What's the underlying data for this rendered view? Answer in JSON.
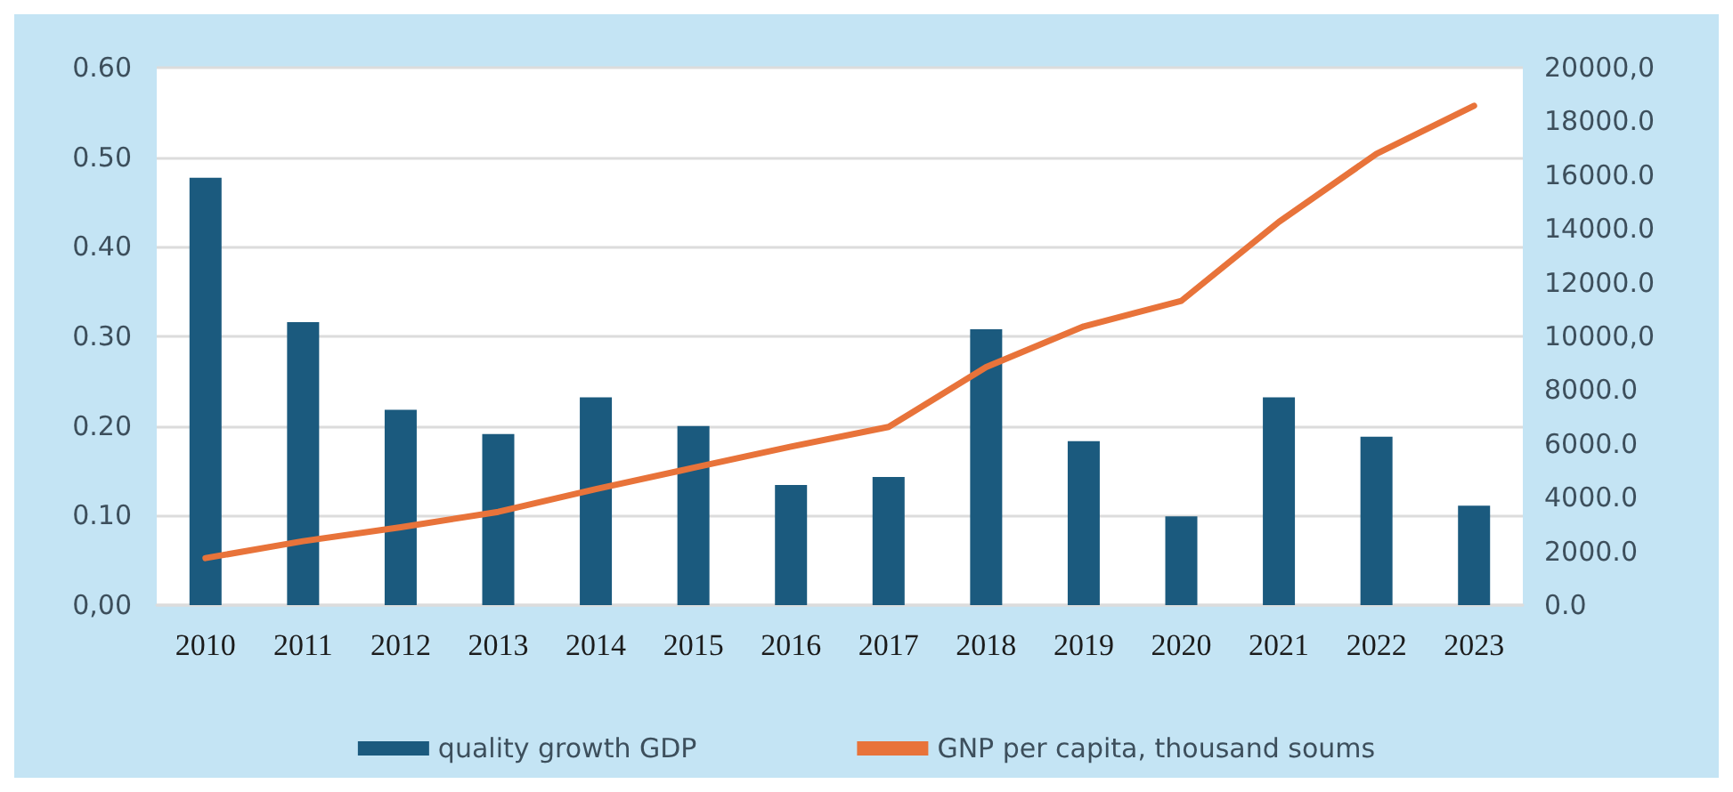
{
  "chart_data": {
    "type": "bar",
    "categories": [
      "2010",
      "2011",
      "2012",
      "2013",
      "2014",
      "2015",
      "2016",
      "2017",
      "2018",
      "2019",
      "2020",
      "2021",
      "2022",
      "2023"
    ],
    "series": [
      {
        "name": "quality growth GDP",
        "color": "#1b5a7e",
        "values": [
          0.477,
          0.316,
          0.218,
          0.191,
          0.232,
          0.2,
          0.134,
          0.143,
          0.308,
          0.183,
          0.099,
          0.232,
          0.188,
          0.111
        ]
      },
      {
        "name": "GNP per capita, thousand soums",
        "type": "line",
        "axis": "y2",
        "color": "#e8733a",
        "values": [
          1750,
          2380,
          2900,
          3470,
          4320,
          5110,
          5900,
          6630,
          8860,
          10370,
          11320,
          14260,
          16790,
          18580
        ]
      }
    ],
    "ylim": [
      0,
      0.6
    ],
    "yticks": [
      {
        "value": 0,
        "label": "0,00"
      },
      {
        "value": 0.1,
        "label": "0.10"
      },
      {
        "value": 0.2,
        "label": "0.20"
      },
      {
        "value": 0.3,
        "label": "0.30"
      },
      {
        "value": 0.4,
        "label": "0.40"
      },
      {
        "value": 0.5,
        "label": "0.50"
      },
      {
        "value": 0.6,
        "label": "0.60"
      }
    ],
    "y2lim": [
      0,
      20000
    ],
    "y2ticks": [
      {
        "value": 0,
        "label": "0.0"
      },
      {
        "value": 2000,
        "label": "2000.0"
      },
      {
        "value": 4000,
        "label": "4000.0"
      },
      {
        "value": 6000,
        "label": "6000.0"
      },
      {
        "value": 8000,
        "label": "8000.0"
      },
      {
        "value": 10000,
        "label": "10000,0"
      },
      {
        "value": 12000,
        "label": "12000.0"
      },
      {
        "value": 14000,
        "label": "14000.0"
      },
      {
        "value": 16000,
        "label": "16000.0"
      },
      {
        "value": 18000,
        "label": "18000.0"
      },
      {
        "value": 20000,
        "label": "20000,0"
      }
    ],
    "grid": "y",
    "legend": "bottom",
    "marker": "none",
    "line_style": "solid"
  }
}
